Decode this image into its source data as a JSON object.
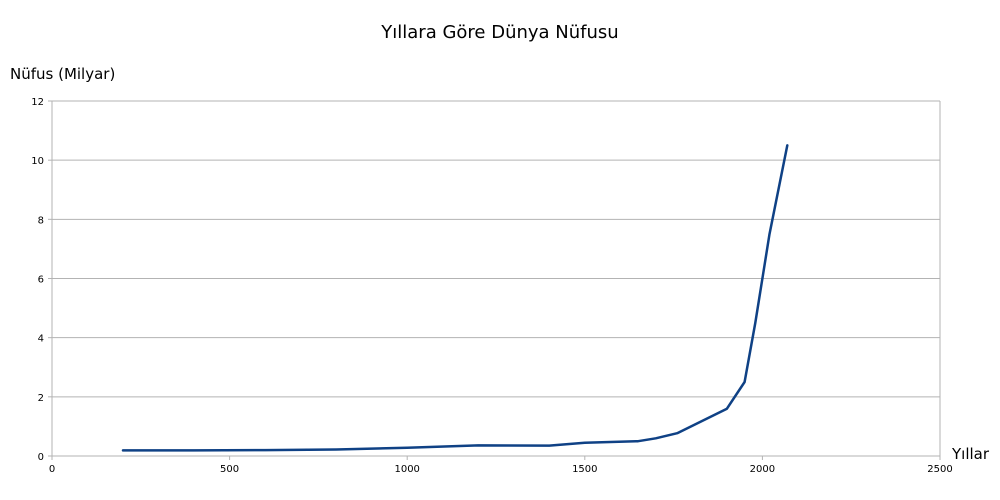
{
  "chart_data": {
    "type": "line",
    "title": "Yıllara Göre Dünya Nüfusu",
    "xlabel": "Yıllar",
    "ylabel": "Nüfus (Milyar)",
    "xlim": [
      0,
      2500
    ],
    "ylim": [
      0,
      12
    ],
    "x_ticks": [
      0,
      500,
      1000,
      1500,
      2000,
      2500
    ],
    "y_ticks": [
      0,
      2,
      4,
      6,
      8,
      10,
      12
    ],
    "grid": true,
    "legend": "none",
    "series": [
      {
        "color": "#0f4185",
        "x": [
          200,
          400,
          600,
          800,
          1000,
          1200,
          1400,
          1500,
          1650,
          1700,
          1760,
          1900,
          1950,
          1980,
          2020,
          2070
        ],
        "y": [
          0.19,
          0.19,
          0.2,
          0.22,
          0.28,
          0.36,
          0.35,
          0.45,
          0.5,
          0.6,
          0.77,
          1.6,
          2.5,
          4.5,
          7.5,
          10.5
        ]
      }
    ]
  }
}
